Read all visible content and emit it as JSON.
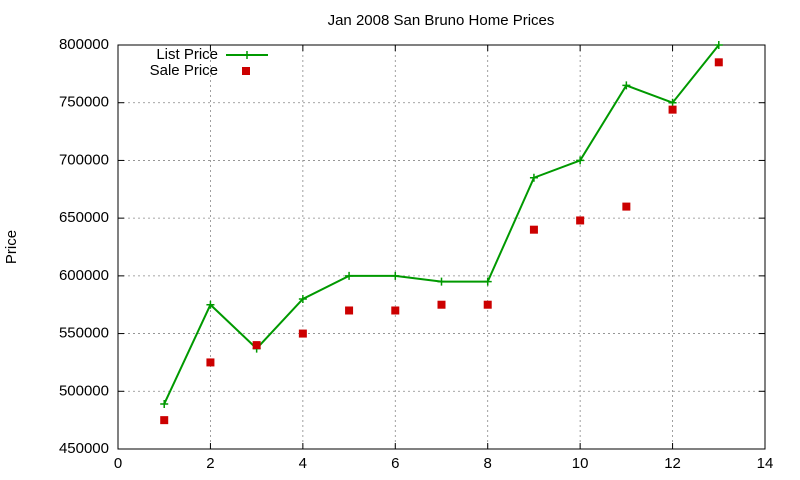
{
  "chart_data": {
    "type": "line",
    "title": "Jan 2008 San Bruno Home Prices",
    "y_label": "Price",
    "x": [
      1,
      2,
      3,
      4,
      5,
      6,
      7,
      8,
      9,
      10,
      11,
      12,
      13
    ],
    "series": [
      {
        "name": "List Price",
        "color": "#009900",
        "style": "linespoints",
        "values": [
          489000,
          575000,
          537000,
          580000,
          600000,
          600000,
          595000,
          595000,
          685000,
          700000,
          765000,
          750000,
          800000
        ]
      },
      {
        "name": "Sale Price",
        "color": "#cc0000",
        "style": "points",
        "values": [
          475000,
          525000,
          540000,
          550000,
          570000,
          570000,
          575000,
          575000,
          640000,
          648000,
          660000,
          744000,
          785000
        ]
      }
    ],
    "xlim": [
      0,
      14
    ],
    "xticks": [
      0,
      2,
      4,
      6,
      8,
      10,
      12,
      14
    ],
    "ylim": [
      450000,
      800000
    ],
    "yticks": [
      450000,
      500000,
      550000,
      600000,
      650000,
      700000,
      750000,
      800000
    ],
    "grid": true,
    "legend": "top-left"
  }
}
